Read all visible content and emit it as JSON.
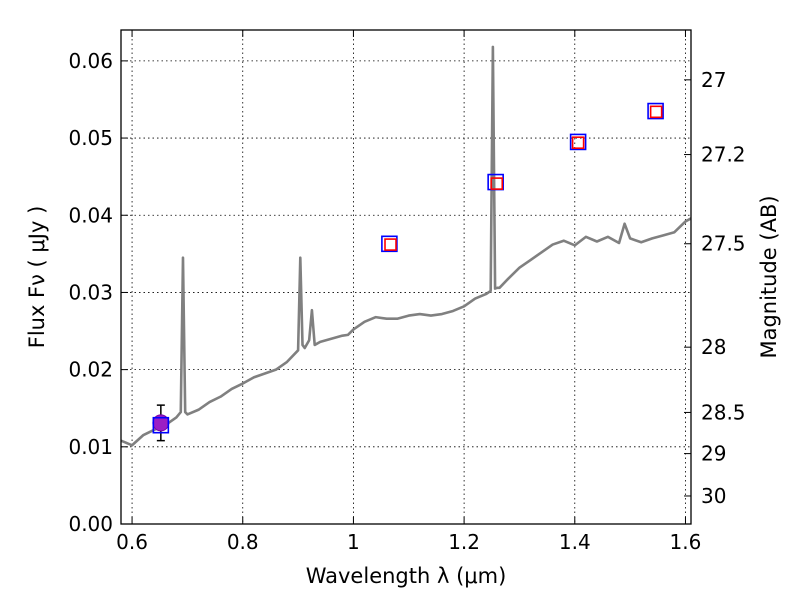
{
  "chart_data": {
    "type": "line",
    "xlabel": "Wavelength  λ (μm)",
    "ylabel": "Flux  Fν  ( μJy )",
    "y2label": "Magnitude (AB)",
    "xlim": [
      0.58,
      1.61
    ],
    "ylim": [
      0.0,
      0.064
    ],
    "grid": true,
    "xticks": [
      {
        "value": 0.6,
        "label": "0.6"
      },
      {
        "value": 0.8,
        "label": "0.8"
      },
      {
        "value": 1.0,
        "label": "1"
      },
      {
        "value": 1.2,
        "label": "1.2"
      },
      {
        "value": 1.4,
        "label": "1.4"
      },
      {
        "value": 1.6,
        "label": "1.6"
      }
    ],
    "yticks": [
      {
        "value": 0.0,
        "label": "0.00"
      },
      {
        "value": 0.01,
        "label": "0.01"
      },
      {
        "value": 0.02,
        "label": "0.02"
      },
      {
        "value": 0.03,
        "label": "0.03"
      },
      {
        "value": 0.04,
        "label": "0.04"
      },
      {
        "value": 0.05,
        "label": "0.05"
      },
      {
        "value": 0.06,
        "label": "0.06"
      }
    ],
    "y2ticks": [
      {
        "value": 27.0,
        "label": "27"
      },
      {
        "value": 27.2,
        "label": "27.2"
      },
      {
        "value": 27.5,
        "label": "27.5"
      },
      {
        "value": 28.0,
        "label": "28"
      },
      {
        "value": 28.5,
        "label": "28.5"
      },
      {
        "value": 29.0,
        "label": "29"
      },
      {
        "value": 30.0,
        "label": "30"
      }
    ],
    "series": [
      {
        "kind": "line",
        "color": "#808080",
        "x": [
          0.58,
          0.6,
          0.62,
          0.64,
          0.66,
          0.68,
          0.688,
          0.692,
          0.696,
          0.7,
          0.72,
          0.74,
          0.76,
          0.78,
          0.8,
          0.82,
          0.84,
          0.86,
          0.88,
          0.9,
          0.904,
          0.908,
          0.912,
          0.92,
          0.925,
          0.93,
          0.94,
          0.96,
          0.98,
          0.99,
          1.0,
          1.02,
          1.04,
          1.06,
          1.08,
          1.1,
          1.12,
          1.14,
          1.16,
          1.18,
          1.2,
          1.22,
          1.24,
          1.248,
          1.252,
          1.256,
          1.26,
          1.264,
          1.28,
          1.3,
          1.32,
          1.34,
          1.36,
          1.38,
          1.4,
          1.42,
          1.44,
          1.46,
          1.48,
          1.49,
          1.5,
          1.52,
          1.54,
          1.56,
          1.58,
          1.6,
          1.61
        ],
        "y": [
          0.0108,
          0.0102,
          0.0115,
          0.0122,
          0.0128,
          0.0138,
          0.0145,
          0.0345,
          0.0145,
          0.0142,
          0.0148,
          0.0158,
          0.0165,
          0.0175,
          0.0182,
          0.019,
          0.0195,
          0.02,
          0.021,
          0.0225,
          0.0345,
          0.0232,
          0.0228,
          0.0238,
          0.0277,
          0.0232,
          0.0236,
          0.024,
          0.0244,
          0.0245,
          0.0252,
          0.0262,
          0.0268,
          0.0266,
          0.0266,
          0.027,
          0.0272,
          0.027,
          0.0272,
          0.0276,
          0.0282,
          0.0292,
          0.0298,
          0.0302,
          0.0618,
          0.0305,
          0.0306,
          0.0306,
          0.0318,
          0.0332,
          0.0342,
          0.0352,
          0.0362,
          0.0367,
          0.0361,
          0.0372,
          0.0366,
          0.0372,
          0.0364,
          0.0389,
          0.037,
          0.0365,
          0.037,
          0.0374,
          0.0378,
          0.0392,
          0.0396
        ]
      },
      {
        "kind": "point",
        "marker": "circle",
        "color": "#9b1ec4",
        "x": [
          0.652
        ],
        "y": [
          0.0131
        ],
        "yerr": [
          0.0023
        ]
      },
      {
        "kind": "point",
        "marker": "square",
        "color": "#0000ff",
        "x": [
          0.652,
          1.065,
          1.257,
          1.406,
          1.546
        ],
        "y": [
          0.0128,
          0.0363,
          0.0443,
          0.0495,
          0.0535
        ]
      },
      {
        "kind": "point",
        "marker": "square",
        "color": "#ff0000",
        "x": [
          1.067,
          1.259,
          1.406,
          1.547
        ],
        "y": [
          0.0362,
          0.0441,
          0.0494,
          0.0534
        ]
      }
    ]
  }
}
